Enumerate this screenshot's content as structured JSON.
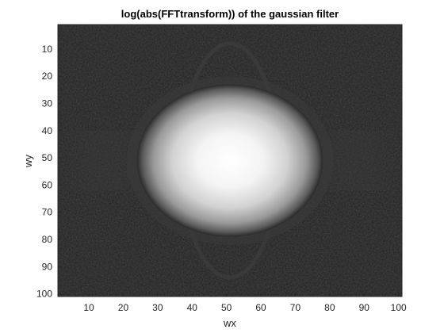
{
  "chart_data": {
    "type": "heatmap",
    "title": "log(abs(FFTtransform)) of the gaussian filter",
    "xlabel": "wx",
    "ylabel": "wy",
    "x_range": [
      1,
      101
    ],
    "y_range": [
      1,
      101
    ],
    "x_ticks": [
      10,
      20,
      30,
      40,
      50,
      60,
      70,
      80,
      90,
      100
    ],
    "y_ticks": [
      10,
      20,
      30,
      40,
      50,
      60,
      70,
      80,
      90,
      100
    ],
    "y_direction": "reversed",
    "colormap": "gray",
    "grid": false,
    "center": [
      51,
      51
    ],
    "bright_radius_x": 27,
    "bright_radius_y": 28,
    "background_gray_level": 0.13,
    "peak_gray_level": 1.0
  }
}
